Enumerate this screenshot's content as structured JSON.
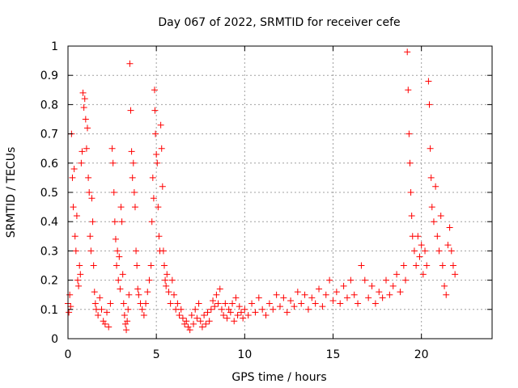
{
  "chart_data": {
    "type": "scatter",
    "title": "Day 067 of 2022, SRMTID for receiver cefe",
    "xlabel": "GPS time / hours",
    "ylabel": "SRMTID / TECUs",
    "xlim": [
      0,
      24
    ],
    "ylim": [
      0,
      1
    ],
    "xticks": [
      0,
      5,
      10,
      15,
      20
    ],
    "xtick_labels": [
      "0",
      "5",
      "10",
      "15",
      "20"
    ],
    "yticks": [
      0,
      0.1,
      0.2,
      0.3,
      0.4,
      0.5,
      0.6,
      0.7,
      0.8,
      0.9,
      1
    ],
    "ytick_labels": [
      "0",
      "0.1",
      "0.2",
      "0.3",
      "0.4",
      "0.5",
      "0.6",
      "0.7",
      "0.8",
      "0.9",
      "1"
    ],
    "grid": true,
    "marker": "+",
    "color": "#ff0000",
    "series": [
      {
        "name": "SRMTID",
        "points": [
          [
            0.0,
            0.12
          ],
          [
            0.05,
            0.09
          ],
          [
            0.1,
            0.15
          ],
          [
            0.15,
            0.11
          ],
          [
            0.2,
            0.7
          ],
          [
            0.25,
            0.55
          ],
          [
            0.3,
            0.45
          ],
          [
            0.35,
            0.58
          ],
          [
            0.4,
            0.35
          ],
          [
            0.45,
            0.3
          ],
          [
            0.5,
            0.42
          ],
          [
            0.55,
            0.2
          ],
          [
            0.6,
            0.18
          ],
          [
            0.65,
            0.25
          ],
          [
            0.7,
            0.22
          ],
          [
            0.75,
            0.6
          ],
          [
            0.8,
            0.64
          ],
          [
            0.85,
            0.84
          ],
          [
            0.9,
            0.79
          ],
          [
            0.95,
            0.82
          ],
          [
            1.0,
            0.75
          ],
          [
            1.05,
            0.65
          ],
          [
            1.1,
            0.72
          ],
          [
            1.15,
            0.55
          ],
          [
            1.2,
            0.5
          ],
          [
            1.25,
            0.35
          ],
          [
            1.3,
            0.3
          ],
          [
            1.35,
            0.48
          ],
          [
            1.4,
            0.4
          ],
          [
            1.45,
            0.25
          ],
          [
            1.5,
            0.16
          ],
          [
            1.55,
            0.12
          ],
          [
            1.6,
            0.1
          ],
          [
            1.7,
            0.08
          ],
          [
            1.8,
            0.14
          ],
          [
            1.9,
            0.1
          ],
          [
            2.0,
            0.06
          ],
          [
            2.1,
            0.05
          ],
          [
            2.2,
            0.09
          ],
          [
            2.3,
            0.04
          ],
          [
            2.4,
            0.12
          ],
          [
            2.5,
            0.65
          ],
          [
            2.55,
            0.6
          ],
          [
            2.6,
            0.5
          ],
          [
            2.65,
            0.4
          ],
          [
            2.7,
            0.34
          ],
          [
            2.75,
            0.25
          ],
          [
            2.8,
            0.3
          ],
          [
            2.85,
            0.2
          ],
          [
            2.9,
            0.28
          ],
          [
            2.95,
            0.17
          ],
          [
            3.0,
            0.45
          ],
          [
            3.05,
            0.4
          ],
          [
            3.1,
            0.22
          ],
          [
            3.15,
            0.12
          ],
          [
            3.2,
            0.08
          ],
          [
            3.25,
            0.05
          ],
          [
            3.3,
            0.03
          ],
          [
            3.35,
            0.06
          ],
          [
            3.4,
            0.1
          ],
          [
            3.45,
            0.15
          ],
          [
            3.5,
            0.94
          ],
          [
            3.55,
            0.78
          ],
          [
            3.6,
            0.64
          ],
          [
            3.65,
            0.55
          ],
          [
            3.7,
            0.6
          ],
          [
            3.75,
            0.5
          ],
          [
            3.8,
            0.45
          ],
          [
            3.85,
            0.3
          ],
          [
            3.9,
            0.25
          ],
          [
            3.95,
            0.17
          ],
          [
            4.0,
            0.15
          ],
          [
            4.1,
            0.12
          ],
          [
            4.2,
            0.1
          ],
          [
            4.3,
            0.08
          ],
          [
            4.4,
            0.12
          ],
          [
            4.5,
            0.16
          ],
          [
            4.6,
            0.2
          ],
          [
            4.7,
            0.25
          ],
          [
            4.75,
            0.4
          ],
          [
            4.8,
            0.55
          ],
          [
            4.85,
            0.48
          ],
          [
            4.9,
            0.85
          ],
          [
            4.92,
            0.78
          ],
          [
            4.95,
            0.7
          ],
          [
            5.0,
            0.63
          ],
          [
            5.05,
            0.6
          ],
          [
            5.1,
            0.45
          ],
          [
            5.15,
            0.35
          ],
          [
            5.2,
            0.3
          ],
          [
            5.25,
            0.73
          ],
          [
            5.3,
            0.65
          ],
          [
            5.35,
            0.52
          ],
          [
            5.4,
            0.3
          ],
          [
            5.45,
            0.25
          ],
          [
            5.5,
            0.2
          ],
          [
            5.55,
            0.18
          ],
          [
            5.6,
            0.22
          ],
          [
            5.7,
            0.16
          ],
          [
            5.8,
            0.12
          ],
          [
            5.9,
            0.2
          ],
          [
            6.0,
            0.15
          ],
          [
            6.1,
            0.1
          ],
          [
            6.2,
            0.12
          ],
          [
            6.3,
            0.08
          ],
          [
            6.4,
            0.1
          ],
          [
            6.5,
            0.07
          ],
          [
            6.6,
            0.05
          ],
          [
            6.7,
            0.06
          ],
          [
            6.8,
            0.04
          ],
          [
            6.9,
            0.03
          ],
          [
            7.0,
            0.08
          ],
          [
            7.1,
            0.05
          ],
          [
            7.2,
            0.1
          ],
          [
            7.3,
            0.07
          ],
          [
            7.4,
            0.12
          ],
          [
            7.5,
            0.06
          ],
          [
            7.6,
            0.04
          ],
          [
            7.7,
            0.08
          ],
          [
            7.8,
            0.05
          ],
          [
            7.9,
            0.09
          ],
          [
            8.0,
            0.06
          ],
          [
            8.1,
            0.1
          ],
          [
            8.2,
            0.13
          ],
          [
            8.3,
            0.11
          ],
          [
            8.4,
            0.15
          ],
          [
            8.5,
            0.12
          ],
          [
            8.6,
            0.17
          ],
          [
            8.7,
            0.1
          ],
          [
            8.8,
            0.08
          ],
          [
            8.9,
            0.12
          ],
          [
            9.0,
            0.07
          ],
          [
            9.1,
            0.1
          ],
          [
            9.2,
            0.09
          ],
          [
            9.3,
            0.12
          ],
          [
            9.4,
            0.06
          ],
          [
            9.5,
            0.14
          ],
          [
            9.6,
            0.08
          ],
          [
            9.7,
            0.11
          ],
          [
            9.8,
            0.09
          ],
          [
            9.9,
            0.07
          ],
          [
            10.0,
            0.1
          ],
          [
            10.2,
            0.08
          ],
          [
            10.4,
            0.12
          ],
          [
            10.6,
            0.09
          ],
          [
            10.8,
            0.14
          ],
          [
            11.0,
            0.1
          ],
          [
            11.2,
            0.08
          ],
          [
            11.4,
            0.12
          ],
          [
            11.6,
            0.1
          ],
          [
            11.8,
            0.15
          ],
          [
            12.0,
            0.11
          ],
          [
            12.2,
            0.14
          ],
          [
            12.4,
            0.09
          ],
          [
            12.6,
            0.13
          ],
          [
            12.8,
            0.11
          ],
          [
            13.0,
            0.16
          ],
          [
            13.2,
            0.12
          ],
          [
            13.4,
            0.15
          ],
          [
            13.6,
            0.1
          ],
          [
            13.8,
            0.14
          ],
          [
            14.0,
            0.12
          ],
          [
            14.2,
            0.17
          ],
          [
            14.4,
            0.11
          ],
          [
            14.6,
            0.15
          ],
          [
            14.8,
            0.2
          ],
          [
            15.0,
            0.13
          ],
          [
            15.2,
            0.16
          ],
          [
            15.4,
            0.12
          ],
          [
            15.6,
            0.18
          ],
          [
            15.8,
            0.14
          ],
          [
            16.0,
            0.2
          ],
          [
            16.2,
            0.15
          ],
          [
            16.4,
            0.12
          ],
          [
            16.6,
            0.25
          ],
          [
            16.8,
            0.2
          ],
          [
            17.0,
            0.14
          ],
          [
            17.2,
            0.18
          ],
          [
            17.4,
            0.12
          ],
          [
            17.6,
            0.16
          ],
          [
            17.8,
            0.14
          ],
          [
            18.0,
            0.2
          ],
          [
            18.2,
            0.15
          ],
          [
            18.4,
            0.18
          ],
          [
            18.6,
            0.22
          ],
          [
            18.8,
            0.16
          ],
          [
            19.0,
            0.25
          ],
          [
            19.1,
            0.2
          ],
          [
            19.2,
            0.98
          ],
          [
            19.25,
            0.85
          ],
          [
            19.3,
            0.7
          ],
          [
            19.35,
            0.6
          ],
          [
            19.4,
            0.5
          ],
          [
            19.45,
            0.42
          ],
          [
            19.5,
            0.35
          ],
          [
            19.6,
            0.3
          ],
          [
            19.7,
            0.25
          ],
          [
            19.8,
            0.35
          ],
          [
            19.9,
            0.28
          ],
          [
            20.0,
            0.32
          ],
          [
            20.1,
            0.22
          ],
          [
            20.2,
            0.3
          ],
          [
            20.3,
            0.25
          ],
          [
            20.4,
            0.88
          ],
          [
            20.45,
            0.8
          ],
          [
            20.5,
            0.65
          ],
          [
            20.55,
            0.55
          ],
          [
            20.6,
            0.45
          ],
          [
            20.7,
            0.4
          ],
          [
            20.8,
            0.52
          ],
          [
            20.9,
            0.35
          ],
          [
            21.0,
            0.3
          ],
          [
            21.1,
            0.42
          ],
          [
            21.2,
            0.25
          ],
          [
            21.3,
            0.18
          ],
          [
            21.4,
            0.15
          ],
          [
            21.5,
            0.32
          ],
          [
            21.6,
            0.38
          ],
          [
            21.7,
            0.3
          ],
          [
            21.8,
            0.25
          ],
          [
            21.9,
            0.22
          ]
        ]
      }
    ]
  }
}
